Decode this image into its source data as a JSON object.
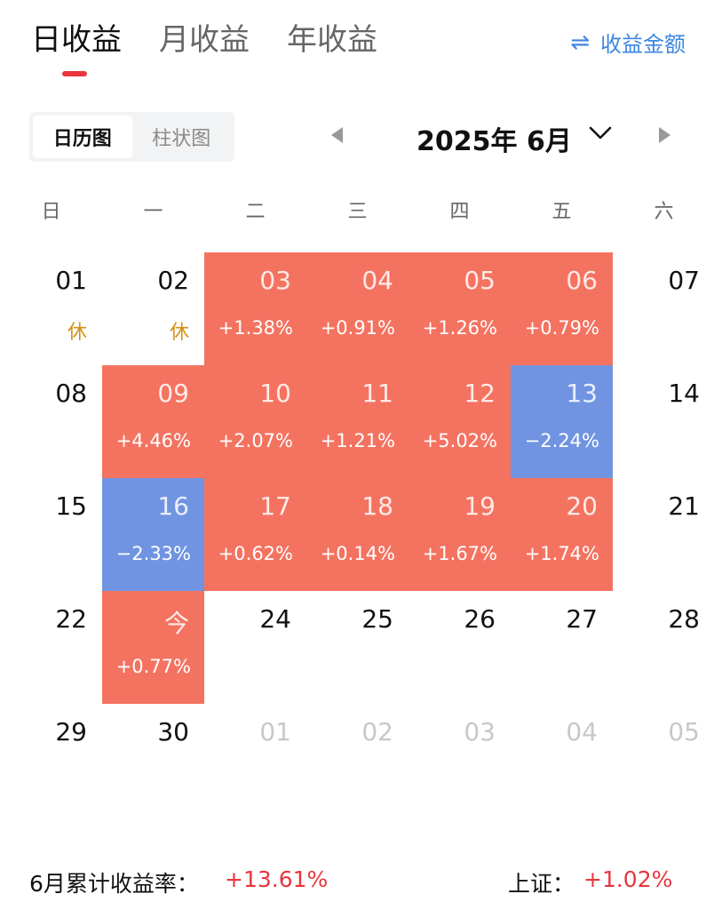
{
  "tabs": [
    {
      "label": "日收益",
      "active": true
    },
    {
      "label": "月收益",
      "active": false
    },
    {
      "label": "年收益",
      "active": false
    }
  ],
  "toggle_metric": {
    "icon": "swap-arrows-icon",
    "glyph": "⇌",
    "label": "收益金额"
  },
  "view_switch": [
    {
      "label": "日历图",
      "active": true
    },
    {
      "label": "柱状图",
      "active": false
    }
  ],
  "month_selector": {
    "title": "2025年 6月"
  },
  "weekdays": [
    "日",
    "一",
    "二",
    "三",
    "四",
    "五",
    "六"
  ],
  "colors": {
    "up": "#f47360",
    "down": "#7094e2",
    "accent": "#e8353e",
    "link": "#3d86e0",
    "rest": "#d39114"
  },
  "weeks": [
    [
      {
        "day": "01",
        "note": "休"
      },
      {
        "day": "02",
        "note": "休"
      },
      {
        "day": "03",
        "rate": "+1.38%",
        "status": "up"
      },
      {
        "day": "04",
        "rate": "+0.91%",
        "status": "up"
      },
      {
        "day": "05",
        "rate": "+1.26%",
        "status": "up"
      },
      {
        "day": "06",
        "rate": "+0.79%",
        "status": "up"
      },
      {
        "day": "07"
      }
    ],
    [
      {
        "day": "08"
      },
      {
        "day": "09",
        "rate": "+4.46%",
        "status": "up"
      },
      {
        "day": "10",
        "rate": "+2.07%",
        "status": "up"
      },
      {
        "day": "11",
        "rate": "+1.21%",
        "status": "up"
      },
      {
        "day": "12",
        "rate": "+5.02%",
        "status": "up"
      },
      {
        "day": "13",
        "rate": "−2.24%",
        "status": "down"
      },
      {
        "day": "14"
      }
    ],
    [
      {
        "day": "15"
      },
      {
        "day": "16",
        "rate": "−2.33%",
        "status": "down"
      },
      {
        "day": "17",
        "rate": "+0.62%",
        "status": "up"
      },
      {
        "day": "18",
        "rate": "+0.14%",
        "status": "up"
      },
      {
        "day": "19",
        "rate": "+1.67%",
        "status": "up"
      },
      {
        "day": "20",
        "rate": "+1.74%",
        "status": "up"
      },
      {
        "day": "21"
      }
    ],
    [
      {
        "day": "22"
      },
      {
        "day": "今",
        "rate": "+0.77%",
        "status": "up"
      },
      {
        "day": "24"
      },
      {
        "day": "25"
      },
      {
        "day": "26"
      },
      {
        "day": "27"
      },
      {
        "day": "28"
      }
    ],
    [
      {
        "day": "29"
      },
      {
        "day": "30"
      },
      {
        "day": "01",
        "faded": true
      },
      {
        "day": "02",
        "faded": true
      },
      {
        "day": "03",
        "faded": true
      },
      {
        "day": "04",
        "faded": true
      },
      {
        "day": "05",
        "faded": true
      }
    ]
  ],
  "footer": {
    "cumulative_label": "6月累计收益率：",
    "cumulative_value": "+13.61%",
    "index_label": "上证：",
    "index_value": "+1.02%"
  }
}
